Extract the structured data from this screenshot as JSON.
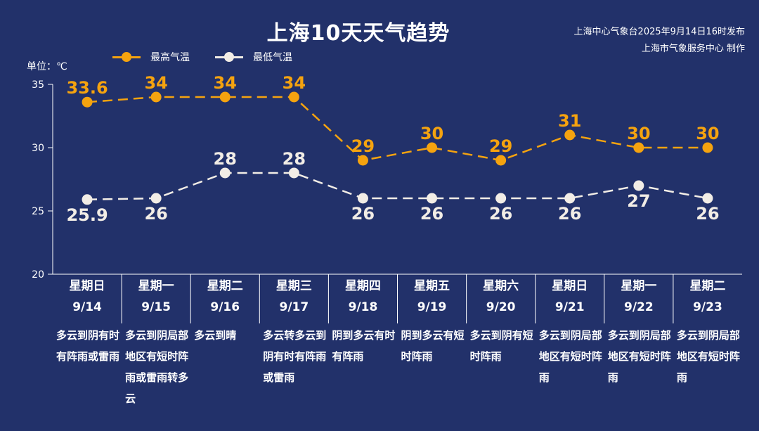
{
  "title": "上海10天天气趋势",
  "source_line1": "上海中心气象台2025年9月14日16时发布",
  "source_line2": "上海市气象服务中心 制作",
  "unit_label": "单位：℃",
  "colors": {
    "background": "#22316a",
    "high": "#f5a30f",
    "low": "#f2ede6",
    "axis": "#ffffff"
  },
  "chart_data": {
    "type": "line",
    "ylim": [
      20,
      35
    ],
    "yticks": [
      20,
      25,
      30,
      35
    ],
    "categories": [
      "9/14",
      "9/15",
      "9/16",
      "9/17",
      "9/18",
      "9/19",
      "9/20",
      "9/21",
      "9/22",
      "9/23"
    ],
    "series": [
      {
        "name": "最高气温",
        "values": [
          33.6,
          34,
          34,
          34,
          29,
          30,
          29,
          31,
          30,
          30
        ],
        "labels": [
          "33.6",
          "34",
          "34",
          "34",
          "29",
          "30",
          "29",
          "31",
          "30",
          "30"
        ]
      },
      {
        "name": "最低气温",
        "values": [
          25.9,
          26,
          28,
          28,
          26,
          26,
          26,
          26,
          27,
          26
        ],
        "labels": [
          "25.9",
          "26",
          "28",
          "28",
          "26",
          "26",
          "26",
          "26",
          "27",
          "26"
        ]
      }
    ],
    "legend": "top-left",
    "grid": false
  },
  "days": [
    {
      "weekday": "星期日",
      "date": "9/14",
      "weather": "多云到阴有时有阵雨或雷雨"
    },
    {
      "weekday": "星期一",
      "date": "9/15",
      "weather": "多云到阴局部地区有短时阵雨或雷雨转多云"
    },
    {
      "weekday": "星期二",
      "date": "9/16",
      "weather": "多云到晴"
    },
    {
      "weekday": "星期三",
      "date": "9/17",
      "weather": "多云转多云到阴有时有阵雨或雷雨"
    },
    {
      "weekday": "星期四",
      "date": "9/18",
      "weather": "阴到多云有时有阵雨"
    },
    {
      "weekday": "星期五",
      "date": "9/19",
      "weather": "阴到多云有短时阵雨"
    },
    {
      "weekday": "星期六",
      "date": "9/20",
      "weather": "多云到阴有短时阵雨"
    },
    {
      "weekday": "星期日",
      "date": "9/21",
      "weather": "多云到阴局部地区有短时阵雨"
    },
    {
      "weekday": "星期一",
      "date": "9/22",
      "weather": "多云到阴局部地区有短时阵雨"
    },
    {
      "weekday": "星期二",
      "date": "9/23",
      "weather": "多云到阴局部地区有短时阵雨"
    }
  ]
}
